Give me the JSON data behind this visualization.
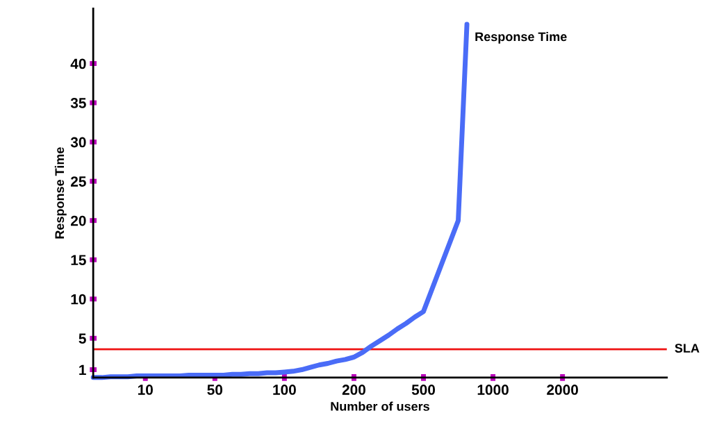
{
  "chart_data": {
    "type": "line",
    "xlabel": "Number of users",
    "ylabel": "Response Time",
    "categories": [
      null,
      null,
      null,
      null,
      null,
      null,
      "10",
      null,
      null,
      null,
      null,
      null,
      null,
      null,
      "50",
      null,
      null,
      null,
      null,
      null,
      null,
      null,
      "100",
      null,
      null,
      null,
      null,
      null,
      null,
      null,
      "200",
      null,
      null,
      null,
      null,
      null,
      null,
      null,
      "500",
      null,
      null,
      null,
      null,
      null,
      null,
      null,
      "1000",
      null,
      null,
      null,
      null,
      null,
      null,
      null,
      "2000",
      null,
      null,
      null,
      null,
      null,
      null,
      null,
      null,
      null,
      null,
      null,
      null
    ],
    "ylim": [
      0,
      47
    ],
    "yticks": [
      1,
      5,
      10,
      15,
      20,
      25,
      30,
      35,
      40
    ],
    "grid": false,
    "legend": false,
    "ref_lines": [
      {
        "axis": "y",
        "value": 3.6,
        "label": "SLA",
        "color": "#ee1111"
      }
    ],
    "series": [
      {
        "name": "Response Time",
        "color": "#4a6cf7",
        "values": [
          0,
          0,
          0.1,
          0.1,
          0.1,
          0.2,
          0.2,
          0.2,
          0.2,
          0.2,
          0.2,
          0.3,
          0.3,
          0.3,
          0.3,
          0.3,
          0.4,
          0.4,
          0.5,
          0.5,
          0.6,
          0.6,
          0.7,
          0.8,
          1.0,
          1.3,
          1.6,
          1.8,
          2.1,
          2.3,
          2.6,
          3.2,
          4.0,
          4.7,
          5.4,
          6.2,
          6.9,
          7.7,
          8.4,
          11.3,
          14.2,
          17.1,
          20,
          45,
          null,
          null,
          null,
          null,
          null,
          null,
          null,
          null,
          null,
          null,
          null,
          null,
          null,
          null,
          null,
          null,
          null,
          null,
          null,
          null,
          null,
          null,
          null
        ]
      }
    ]
  }
}
